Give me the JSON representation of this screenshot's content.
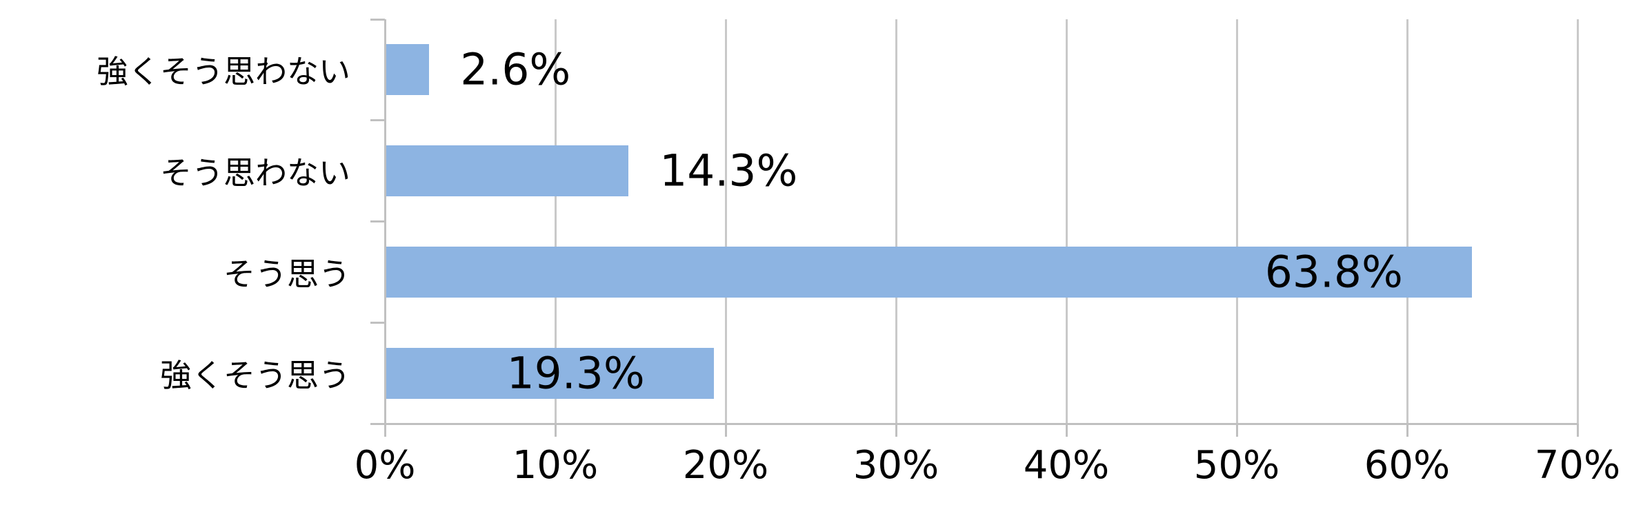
{
  "page": {
    "background": "#FFFFFF"
  },
  "chart_data": {
    "type": "bar",
    "orientation": "horizontal",
    "title": "",
    "xlabel": "",
    "ylabel": "",
    "categories": [
      "強くそう思わない",
      "そう思わない",
      "そう思う",
      "強くそう思う"
    ],
    "values": [
      2.6,
      14.3,
      63.8,
      19.3
    ],
    "data_labels": [
      "2.6%",
      "14.3%",
      "63.8%",
      "19.3%"
    ],
    "data_label_positions": [
      "outside-end",
      "outside-end",
      "inside-end",
      "inside-end"
    ],
    "x_axis": {
      "min": 0,
      "max": 70,
      "step": 10,
      "tick_labels": [
        "0%",
        "10%",
        "20%",
        "30%",
        "40%",
        "50%",
        "60%",
        "70%"
      ]
    },
    "grid": true,
    "legend": false,
    "colors": {
      "bar": "#8DB4E2",
      "gridline": "#C9C9C9",
      "axis": "#C0C0C0",
      "text": "#000000"
    }
  }
}
